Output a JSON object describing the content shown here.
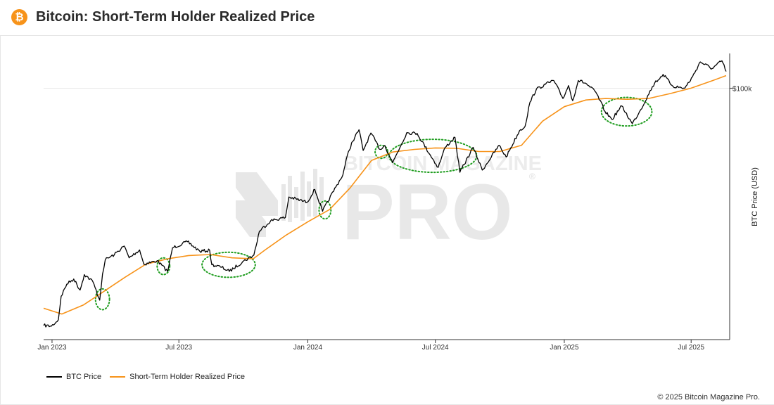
{
  "header": {
    "icon": "bitcoin-icon",
    "icon_glyph": "₿",
    "title": "Bitcoin: Short-Term Holder Realized Price"
  },
  "watermark": {
    "brand_top": "BITCOIN MAGAZINE",
    "brand_main": "PRO",
    "registered": "®"
  },
  "legend": {
    "items": [
      {
        "label": "BTC Price",
        "color": "#000000"
      },
      {
        "label": "Short-Term Holder Realized Price",
        "color": "#f7931a"
      }
    ]
  },
  "footer": {
    "copyright": "© 2025 Bitcoin Magazine Pro."
  },
  "chart_data": {
    "type": "line",
    "title": "Bitcoin: Short-Term Holder Realized Price",
    "xlabel": "",
    "ylabel": "BTC Price (USD)",
    "y_scale": "log",
    "ylim": [
      15000,
      130000
    ],
    "xlim": [
      "2022-12-20",
      "2025-08-25"
    ],
    "x_ticks": [
      {
        "date": "2023-01-01",
        "label": "Jan 2023"
      },
      {
        "date": "2023-07-01",
        "label": "Jul 2023"
      },
      {
        "date": "2024-01-01",
        "label": "Jan 2024"
      },
      {
        "date": "2024-07-01",
        "label": "Jul 2024"
      },
      {
        "date": "2025-01-01",
        "label": "Jan 2025"
      },
      {
        "date": "2025-07-01",
        "label": "Jul 2025"
      }
    ],
    "y_ticks": [
      {
        "value": 100000,
        "label": "$100k"
      }
    ],
    "series": [
      {
        "name": "BTC Price",
        "color": "#000000",
        "points": [
          [
            "2022-12-20",
            16700
          ],
          [
            "2022-12-31",
            16600
          ],
          [
            "2023-01-10",
            17400
          ],
          [
            "2023-01-14",
            20800
          ],
          [
            "2023-01-22",
            22800
          ],
          [
            "2023-02-01",
            23700
          ],
          [
            "2023-02-10",
            21800
          ],
          [
            "2023-02-16",
            24500
          ],
          [
            "2023-02-28",
            23300
          ],
          [
            "2023-03-10",
            20200
          ],
          [
            "2023-03-14",
            24600
          ],
          [
            "2023-03-18",
            27400
          ],
          [
            "2023-03-31",
            28500
          ],
          [
            "2023-04-14",
            30400
          ],
          [
            "2023-04-21",
            27800
          ],
          [
            "2023-05-06",
            29500
          ],
          [
            "2023-05-12",
            26500
          ],
          [
            "2023-05-31",
            27200
          ],
          [
            "2023-06-15",
            25100
          ],
          [
            "2023-06-22",
            30000
          ],
          [
            "2023-07-13",
            31400
          ],
          [
            "2023-07-31",
            29200
          ],
          [
            "2023-08-14",
            29400
          ],
          [
            "2023-08-17",
            26400
          ],
          [
            "2023-08-31",
            25900
          ],
          [
            "2023-09-11",
            25100
          ],
          [
            "2023-09-30",
            27000
          ],
          [
            "2023-10-16",
            28400
          ],
          [
            "2023-10-24",
            34000
          ],
          [
            "2023-11-09",
            36800
          ],
          [
            "2023-11-30",
            37700
          ],
          [
            "2023-12-05",
            44000
          ],
          [
            "2023-12-31",
            42300
          ],
          [
            "2024-01-11",
            46600
          ],
          [
            "2024-01-22",
            39500
          ],
          [
            "2024-02-10",
            47500
          ],
          [
            "2024-02-20",
            52000
          ],
          [
            "2024-02-28",
            62000
          ],
          [
            "2024-03-05",
            67000
          ],
          [
            "2024-03-14",
            73100
          ],
          [
            "2024-03-20",
            62500
          ],
          [
            "2024-03-31",
            71300
          ],
          [
            "2024-04-13",
            63000
          ],
          [
            "2024-04-20",
            64900
          ],
          [
            "2024-05-01",
            57000
          ],
          [
            "2024-05-21",
            71400
          ],
          [
            "2024-06-05",
            71100
          ],
          [
            "2024-06-24",
            60300
          ],
          [
            "2024-07-05",
            55000
          ],
          [
            "2024-07-15",
            64000
          ],
          [
            "2024-07-29",
            69000
          ],
          [
            "2024-08-05",
            53000
          ],
          [
            "2024-08-24",
            64000
          ],
          [
            "2024-09-06",
            53900
          ],
          [
            "2024-09-30",
            65000
          ],
          [
            "2024-10-10",
            59500
          ],
          [
            "2024-10-29",
            72500
          ],
          [
            "2024-11-06",
            75000
          ],
          [
            "2024-11-13",
            90000
          ],
          [
            "2024-11-22",
            99000
          ],
          [
            "2024-12-05",
            103000
          ],
          [
            "2024-12-17",
            106000
          ],
          [
            "2024-12-30",
            92500
          ],
          [
            "2025-01-07",
            102000
          ],
          [
            "2025-01-13",
            91000
          ],
          [
            "2025-01-21",
            106000
          ],
          [
            "2025-01-31",
            104000
          ],
          [
            "2025-02-15",
            97000
          ],
          [
            "2025-02-28",
            84000
          ],
          [
            "2025-03-10",
            79000
          ],
          [
            "2025-03-24",
            87500
          ],
          [
            "2025-04-08",
            76500
          ],
          [
            "2025-04-20",
            85000
          ],
          [
            "2025-04-30",
            94500
          ],
          [
            "2025-05-10",
            104000
          ],
          [
            "2025-05-22",
            111000
          ],
          [
            "2025-06-05",
            101500
          ],
          [
            "2025-06-22",
            100000
          ],
          [
            "2025-07-03",
            109000
          ],
          [
            "2025-07-14",
            122000
          ],
          [
            "2025-07-31",
            116000
          ],
          [
            "2025-08-14",
            123000
          ],
          [
            "2025-08-20",
            113500
          ]
        ]
      },
      {
        "name": "Short-Term Holder Realized Price",
        "color": "#f7931a",
        "points": [
          [
            "2022-12-20",
            19000
          ],
          [
            "2023-01-15",
            18200
          ],
          [
            "2023-02-15",
            19500
          ],
          [
            "2023-03-15",
            21500
          ],
          [
            "2023-04-15",
            24000
          ],
          [
            "2023-05-15",
            26500
          ],
          [
            "2023-06-15",
            27600
          ],
          [
            "2023-07-15",
            28300
          ],
          [
            "2023-08-15",
            28500
          ],
          [
            "2023-09-15",
            27800
          ],
          [
            "2023-10-15",
            27600
          ],
          [
            "2023-11-01",
            29500
          ],
          [
            "2023-12-01",
            33000
          ],
          [
            "2024-01-01",
            36500
          ],
          [
            "2024-02-01",
            40000
          ],
          [
            "2024-03-01",
            47000
          ],
          [
            "2024-04-01",
            58000
          ],
          [
            "2024-05-01",
            61800
          ],
          [
            "2024-06-01",
            63000
          ],
          [
            "2024-07-01",
            63700
          ],
          [
            "2024-08-01",
            63500
          ],
          [
            "2024-09-01",
            62000
          ],
          [
            "2024-10-01",
            62000
          ],
          [
            "2024-11-01",
            65000
          ],
          [
            "2024-12-01",
            78000
          ],
          [
            "2025-01-01",
            87000
          ],
          [
            "2025-02-01",
            91500
          ],
          [
            "2025-03-01",
            92500
          ],
          [
            "2025-04-01",
            92000
          ],
          [
            "2025-05-01",
            92500
          ],
          [
            "2025-06-01",
            96000
          ],
          [
            "2025-07-01",
            100000
          ],
          [
            "2025-08-01",
            106000
          ],
          [
            "2025-08-20",
            110000
          ]
        ]
      }
    ],
    "annotations": [
      {
        "type": "ellipse",
        "label": "",
        "start": "2023-03-04",
        "end": "2023-03-24",
        "y_low": 18800,
        "y_high": 22000
      },
      {
        "type": "ellipse",
        "label": "",
        "start": "2023-05-31",
        "end": "2023-06-18",
        "y_low": 24500,
        "y_high": 27800
      },
      {
        "type": "ellipse",
        "label": "",
        "start": "2023-08-03",
        "end": "2023-10-18",
        "y_low": 24000,
        "y_high": 29000
      },
      {
        "type": "ellipse",
        "label": "",
        "start": "2024-01-17",
        "end": "2024-02-03",
        "y_low": 37300,
        "y_high": 42700
      },
      {
        "type": "ellipse",
        "label": "",
        "start": "2024-04-06",
        "end": "2024-04-24",
        "y_low": 58900,
        "y_high": 65000
      },
      {
        "type": "ellipse",
        "label": "",
        "start": "2024-04-26",
        "end": "2024-08-29",
        "y_low": 53000,
        "y_high": 68000
      },
      {
        "type": "ellipse",
        "label": "",
        "start": "2025-02-23",
        "end": "2025-05-06",
        "y_low": 75200,
        "y_high": 93300
      }
    ]
  }
}
